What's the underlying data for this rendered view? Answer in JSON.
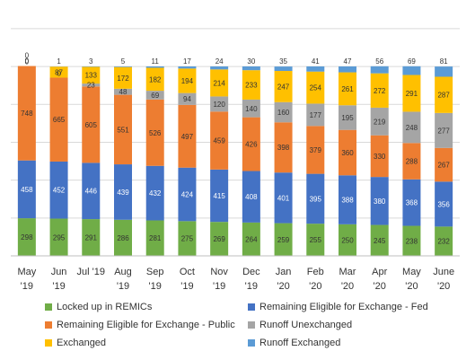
{
  "chart_data": {
    "type": "bar",
    "stacked": true,
    "categories": [
      [
        "May",
        "'19"
      ],
      [
        "Jun",
        "'19"
      ],
      [
        "Jul '19",
        ""
      ],
      [
        "Aug",
        "'19"
      ],
      [
        "Sep",
        "'19"
      ],
      [
        "Oct",
        "'19"
      ],
      [
        "Nov",
        "'19"
      ],
      [
        "Dec",
        "'19"
      ],
      [
        "Jan",
        "'20"
      ],
      [
        "Feb",
        "'20"
      ],
      [
        "Mar",
        "'20"
      ],
      [
        "Apr",
        "'20"
      ],
      [
        "May",
        "'20"
      ],
      [
        "June",
        "'20"
      ]
    ],
    "series": [
      {
        "name": "Locked up in REMICs",
        "color": "#70ad47",
        "label_color": "#333333",
        "values": [
          298,
          295,
          291,
          286,
          281,
          275,
          269,
          264,
          259,
          255,
          250,
          245,
          238,
          232
        ]
      },
      {
        "name": "Remaining Eligible for Exchange - Fed",
        "color": "#4472c4",
        "label_color": "#ffffff",
        "values": [
          458,
          452,
          446,
          439,
          432,
          424,
          415,
          408,
          401,
          395,
          388,
          380,
          368,
          356
        ]
      },
      {
        "name": "Remaining Eligible for Exchange - Public",
        "color": "#ed7d31",
        "label_color": "#333333",
        "values": [
          748,
          665,
          605,
          551,
          526,
          497,
          459,
          426,
          398,
          379,
          360,
          330,
          288,
          267
        ]
      },
      {
        "name": "Runoff Unexchanged",
        "color": "#a5a5a5",
        "label_color": "#333333",
        "values": [
          0,
          0,
          23,
          48,
          69,
          94,
          120,
          140,
          160,
          177,
          195,
          219,
          248,
          277
        ]
      },
      {
        "name": "Exchanged",
        "color": "#ffc000",
        "label_color": "#333333",
        "values": [
          0,
          87,
          133,
          172,
          182,
          194,
          214,
          233,
          247,
          254,
          261,
          272,
          291,
          287
        ]
      },
      {
        "name": "Runoff Exchanged",
        "color": "#5b9bd5",
        "label_color": "#333333",
        "values": [
          0,
          1,
          3,
          5,
          11,
          17,
          24,
          30,
          35,
          41,
          47,
          56,
          69,
          81
        ]
      }
    ],
    "legend_position": "bottom",
    "grid": true
  }
}
